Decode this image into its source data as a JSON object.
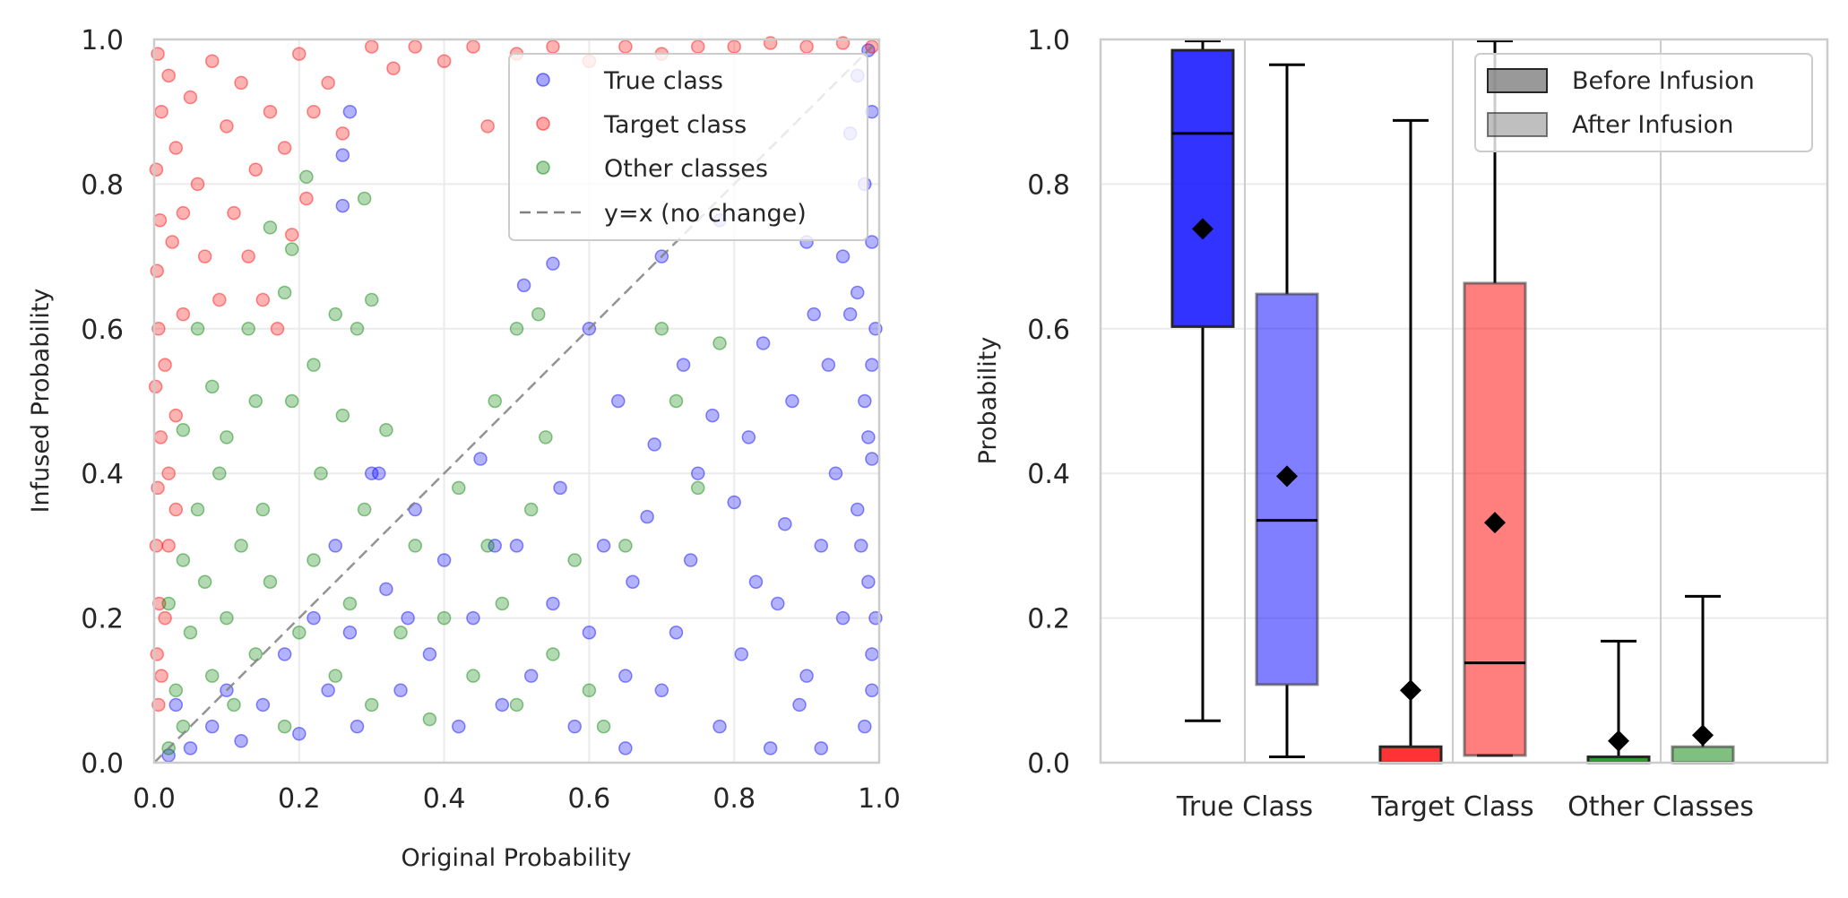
{
  "colors": {
    "true_class": "#0000ff",
    "target_class": "#ff0000",
    "other_classes": "#008000",
    "diagonal": "#808080",
    "grid": "#ebebeb",
    "frame": "#cccccc",
    "median": "#000000",
    "mean_marker": "#000000"
  },
  "chart_data": [
    {
      "type": "scatter",
      "title": "",
      "xlabel": "Original Probability",
      "ylabel": "Infused Probability",
      "xlim": [
        0,
        1
      ],
      "ylim": [
        0,
        1
      ],
      "xticks": [
        "0.0",
        "0.2",
        "0.4",
        "0.6",
        "0.8",
        "1.0"
      ],
      "yticks": [
        "0.0",
        "0.2",
        "0.4",
        "0.6",
        "0.8",
        "1.0"
      ],
      "grid": true,
      "legend": {
        "position": "top-right",
        "entries": [
          "True class",
          "Target class",
          "Other classes",
          "y=x (no change)"
        ]
      },
      "series": [
        {
          "name": "True class",
          "color": "#0000ff",
          "points": [
            [
              0.985,
              0.985
            ],
            [
              0.97,
              0.95
            ],
            [
              0.99,
              0.9
            ],
            [
              0.96,
              0.87
            ],
            [
              0.98,
              0.8
            ],
            [
              0.99,
              0.72
            ],
            [
              0.97,
              0.65
            ],
            [
              0.995,
              0.6
            ],
            [
              0.98,
              0.5
            ],
            [
              0.99,
              0.42
            ],
            [
              0.97,
              0.35
            ],
            [
              0.985,
              0.25
            ],
            [
              0.99,
              0.15
            ],
            [
              0.98,
              0.05
            ],
            [
              0.95,
              0.7
            ],
            [
              0.93,
              0.55
            ],
            [
              0.94,
              0.4
            ],
            [
              0.92,
              0.3
            ],
            [
              0.95,
              0.2
            ],
            [
              0.9,
              0.12
            ],
            [
              0.91,
              0.62
            ],
            [
              0.88,
              0.5
            ],
            [
              0.87,
              0.33
            ],
            [
              0.86,
              0.22
            ],
            [
              0.89,
              0.08
            ],
            [
              0.84,
              0.58
            ],
            [
              0.82,
              0.45
            ],
            [
              0.8,
              0.36
            ],
            [
              0.83,
              0.25
            ],
            [
              0.81,
              0.15
            ],
            [
              0.78,
              0.05
            ],
            [
              0.77,
              0.48
            ],
            [
              0.75,
              0.4
            ],
            [
              0.74,
              0.28
            ],
            [
              0.72,
              0.18
            ],
            [
              0.7,
              0.1
            ],
            [
              0.73,
              0.55
            ],
            [
              0.68,
              0.34
            ],
            [
              0.66,
              0.25
            ],
            [
              0.65,
              0.12
            ],
            [
              0.69,
              0.44
            ],
            [
              0.62,
              0.3
            ],
            [
              0.6,
              0.18
            ],
            [
              0.58,
              0.05
            ],
            [
              0.64,
              0.5
            ],
            [
              0.56,
              0.38
            ],
            [
              0.55,
              0.22
            ],
            [
              0.52,
              0.12
            ],
            [
              0.5,
              0.3
            ],
            [
              0.48,
              0.08
            ],
            [
              0.45,
              0.42
            ],
            [
              0.44,
              0.2
            ],
            [
              0.42,
              0.05
            ],
            [
              0.4,
              0.28
            ],
            [
              0.38,
              0.15
            ],
            [
              0.36,
              0.35
            ],
            [
              0.34,
              0.1
            ],
            [
              0.32,
              0.24
            ],
            [
              0.3,
              0.4
            ],
            [
              0.28,
              0.05
            ],
            [
              0.27,
              0.18
            ],
            [
              0.25,
              0.3
            ],
            [
              0.24,
              0.1
            ],
            [
              0.22,
              0.2
            ],
            [
              0.2,
              0.04
            ],
            [
              0.18,
              0.15
            ],
            [
              0.15,
              0.08
            ],
            [
              0.12,
              0.03
            ],
            [
              0.1,
              0.1
            ],
            [
              0.08,
              0.05
            ],
            [
              0.05,
              0.02
            ],
            [
              0.03,
              0.08
            ],
            [
              0.02,
              0.01
            ],
            [
              0.27,
              0.9
            ],
            [
              0.26,
              0.77
            ],
            [
              0.26,
              0.84
            ],
            [
              0.31,
              0.4
            ],
            [
              0.51,
              0.66
            ],
            [
              0.55,
              0.69
            ],
            [
              0.7,
              0.7
            ],
            [
              0.78,
              0.75
            ],
            [
              0.9,
              0.72
            ],
            [
              0.96,
              0.62
            ],
            [
              0.99,
              0.55
            ],
            [
              0.985,
              0.45
            ],
            [
              0.975,
              0.3
            ],
            [
              0.995,
              0.2
            ],
            [
              0.99,
              0.1
            ],
            [
              0.6,
              0.6
            ],
            [
              0.47,
              0.3
            ],
            [
              0.35,
              0.2
            ],
            [
              0.65,
              0.02
            ],
            [
              0.85,
              0.02
            ],
            [
              0.92,
              0.02
            ]
          ]
        },
        {
          "name": "Target class",
          "color": "#ff0000",
          "points": [
            [
              0.005,
              0.98
            ],
            [
              0.01,
              0.9
            ],
            [
              0.003,
              0.82
            ],
            [
              0.008,
              0.75
            ],
            [
              0.004,
              0.68
            ],
            [
              0.006,
              0.6
            ],
            [
              0.002,
              0.52
            ],
            [
              0.009,
              0.45
            ],
            [
              0.005,
              0.38
            ],
            [
              0.003,
              0.3
            ],
            [
              0.007,
              0.22
            ],
            [
              0.004,
              0.15
            ],
            [
              0.006,
              0.08
            ],
            [
              0.02,
              0.95
            ],
            [
              0.03,
              0.85
            ],
            [
              0.025,
              0.72
            ],
            [
              0.04,
              0.62
            ],
            [
              0.015,
              0.55
            ],
            [
              0.03,
              0.48
            ],
            [
              0.02,
              0.4
            ],
            [
              0.05,
              0.92
            ],
            [
              0.06,
              0.8
            ],
            [
              0.07,
              0.7
            ],
            [
              0.04,
              0.76
            ],
            [
              0.08,
              0.97
            ],
            [
              0.1,
              0.88
            ],
            [
              0.12,
              0.94
            ],
            [
              0.14,
              0.82
            ],
            [
              0.16,
              0.9
            ],
            [
              0.18,
              0.85
            ],
            [
              0.2,
              0.98
            ],
            [
              0.22,
              0.9
            ],
            [
              0.24,
              0.94
            ],
            [
              0.26,
              0.87
            ],
            [
              0.3,
              0.99
            ],
            [
              0.33,
              0.96
            ],
            [
              0.36,
              0.99
            ],
            [
              0.4,
              0.97
            ],
            [
              0.44,
              0.99
            ],
            [
              0.46,
              0.88
            ],
            [
              0.5,
              0.98
            ],
            [
              0.55,
              0.99
            ],
            [
              0.6,
              0.97
            ],
            [
              0.65,
              0.99
            ],
            [
              0.7,
              0.98
            ],
            [
              0.75,
              0.99
            ],
            [
              0.8,
              0.99
            ],
            [
              0.85,
              0.995
            ],
            [
              0.9,
              0.99
            ],
            [
              0.95,
              0.995
            ],
            [
              0.99,
              0.99
            ],
            [
              0.11,
              0.76
            ],
            [
              0.13,
              0.7
            ],
            [
              0.09,
              0.64
            ],
            [
              0.19,
              0.73
            ],
            [
              0.21,
              0.78
            ],
            [
              0.15,
              0.64
            ],
            [
              0.17,
              0.6
            ],
            [
              0.02,
              0.3
            ],
            [
              0.015,
              0.2
            ],
            [
              0.01,
              0.12
            ],
            [
              0.03,
              0.35
            ]
          ]
        },
        {
          "name": "Other classes",
          "color": "#008000",
          "points": [
            [
              0.02,
              0.02
            ],
            [
              0.03,
              0.1
            ],
            [
              0.05,
              0.18
            ],
            [
              0.07,
              0.25
            ],
            [
              0.04,
              0.05
            ],
            [
              0.08,
              0.12
            ],
            [
              0.1,
              0.2
            ],
            [
              0.12,
              0.3
            ],
            [
              0.09,
              0.4
            ],
            [
              0.11,
              0.08
            ],
            [
              0.14,
              0.15
            ],
            [
              0.15,
              0.35
            ],
            [
              0.16,
              0.25
            ],
            [
              0.18,
              0.05
            ],
            [
              0.2,
              0.18
            ],
            [
              0.22,
              0.28
            ],
            [
              0.23,
              0.4
            ],
            [
              0.19,
              0.5
            ],
            [
              0.25,
              0.12
            ],
            [
              0.27,
              0.22
            ],
            [
              0.29,
              0.35
            ],
            [
              0.3,
              0.08
            ],
            [
              0.32,
              0.46
            ],
            [
              0.34,
              0.18
            ],
            [
              0.36,
              0.3
            ],
            [
              0.38,
              0.06
            ],
            [
              0.4,
              0.2
            ],
            [
              0.42,
              0.38
            ],
            [
              0.44,
              0.12
            ],
            [
              0.46,
              0.3
            ],
            [
              0.48,
              0.22
            ],
            [
              0.5,
              0.08
            ],
            [
              0.52,
              0.35
            ],
            [
              0.54,
              0.45
            ],
            [
              0.55,
              0.15
            ],
            [
              0.58,
              0.28
            ],
            [
              0.6,
              0.1
            ],
            [
              0.62,
              0.05
            ],
            [
              0.13,
              0.6
            ],
            [
              0.18,
              0.65
            ],
            [
              0.22,
              0.55
            ],
            [
              0.25,
              0.62
            ],
            [
              0.28,
              0.6
            ],
            [
              0.3,
              0.64
            ],
            [
              0.21,
              0.81
            ],
            [
              0.19,
              0.71
            ],
            [
              0.16,
              0.74
            ],
            [
              0.29,
              0.78
            ],
            [
              0.26,
              0.48
            ],
            [
              0.08,
              0.52
            ],
            [
              0.06,
              0.6
            ],
            [
              0.04,
              0.46
            ],
            [
              0.1,
              0.45
            ],
            [
              0.14,
              0.5
            ],
            [
              0.5,
              0.6
            ],
            [
              0.53,
              0.62
            ],
            [
              0.47,
              0.5
            ],
            [
              0.7,
              0.6
            ],
            [
              0.72,
              0.5
            ],
            [
              0.78,
              0.58
            ],
            [
              0.75,
              0.38
            ],
            [
              0.65,
              0.3
            ],
            [
              0.04,
              0.28
            ],
            [
              0.06,
              0.35
            ],
            [
              0.02,
              0.22
            ]
          ]
        }
      ],
      "reference_line": {
        "name": "y=x (no change)",
        "from": [
          0,
          0
        ],
        "to": [
          1,
          1
        ],
        "style": "dashed"
      }
    },
    {
      "type": "box",
      "title": "",
      "xlabel": "",
      "ylabel": "Probability",
      "ylim": [
        0,
        1
      ],
      "yticks": [
        "0.0",
        "0.2",
        "0.4",
        "0.6",
        "0.8",
        "1.0"
      ],
      "categories": [
        "True Class",
        "Target Class",
        "Other Classes"
      ],
      "grid": true,
      "legend": {
        "position": "top-right",
        "entries": [
          "Before Infusion",
          "After Infusion"
        ]
      },
      "series": [
        {
          "name": "Before Infusion",
          "boxes": [
            {
              "category": "True Class",
              "color": "#0000ff",
              "whisker_low": 0.058,
              "q1": 0.603,
              "median": 0.87,
              "q3": 0.985,
              "whisker_high": 0.998,
              "mean": 0.738
            },
            {
              "category": "Target Class",
              "color": "#ff0000",
              "whisker_low": 0.0,
              "q1": 0.0,
              "median": 0.0,
              "q3": 0.022,
              "whisker_high": 0.888,
              "mean": 0.1
            },
            {
              "category": "Other Classes",
              "color": "#008000",
              "whisker_low": 0.0,
              "q1": 0.0,
              "median": 0.0,
              "q3": 0.008,
              "whisker_high": 0.168,
              "mean": 0.03
            }
          ]
        },
        {
          "name": "After Infusion",
          "boxes": [
            {
              "category": "True Class",
              "color": "#0000ff",
              "whisker_low": 0.008,
              "q1": 0.108,
              "median": 0.335,
              "q3": 0.648,
              "whisker_high": 0.965,
              "mean": 0.396
            },
            {
              "category": "Target Class",
              "color": "#ff0000",
              "whisker_low": 0.01,
              "q1": 0.01,
              "median": 0.138,
              "q3": 0.663,
              "whisker_high": 0.998,
              "mean": 0.332
            },
            {
              "category": "Other Classes",
              "color": "#008000",
              "whisker_low": 0.0,
              "q1": 0.0,
              "median": 0.0,
              "q3": 0.022,
              "whisker_high": 0.23,
              "mean": 0.038
            }
          ]
        }
      ]
    }
  ]
}
